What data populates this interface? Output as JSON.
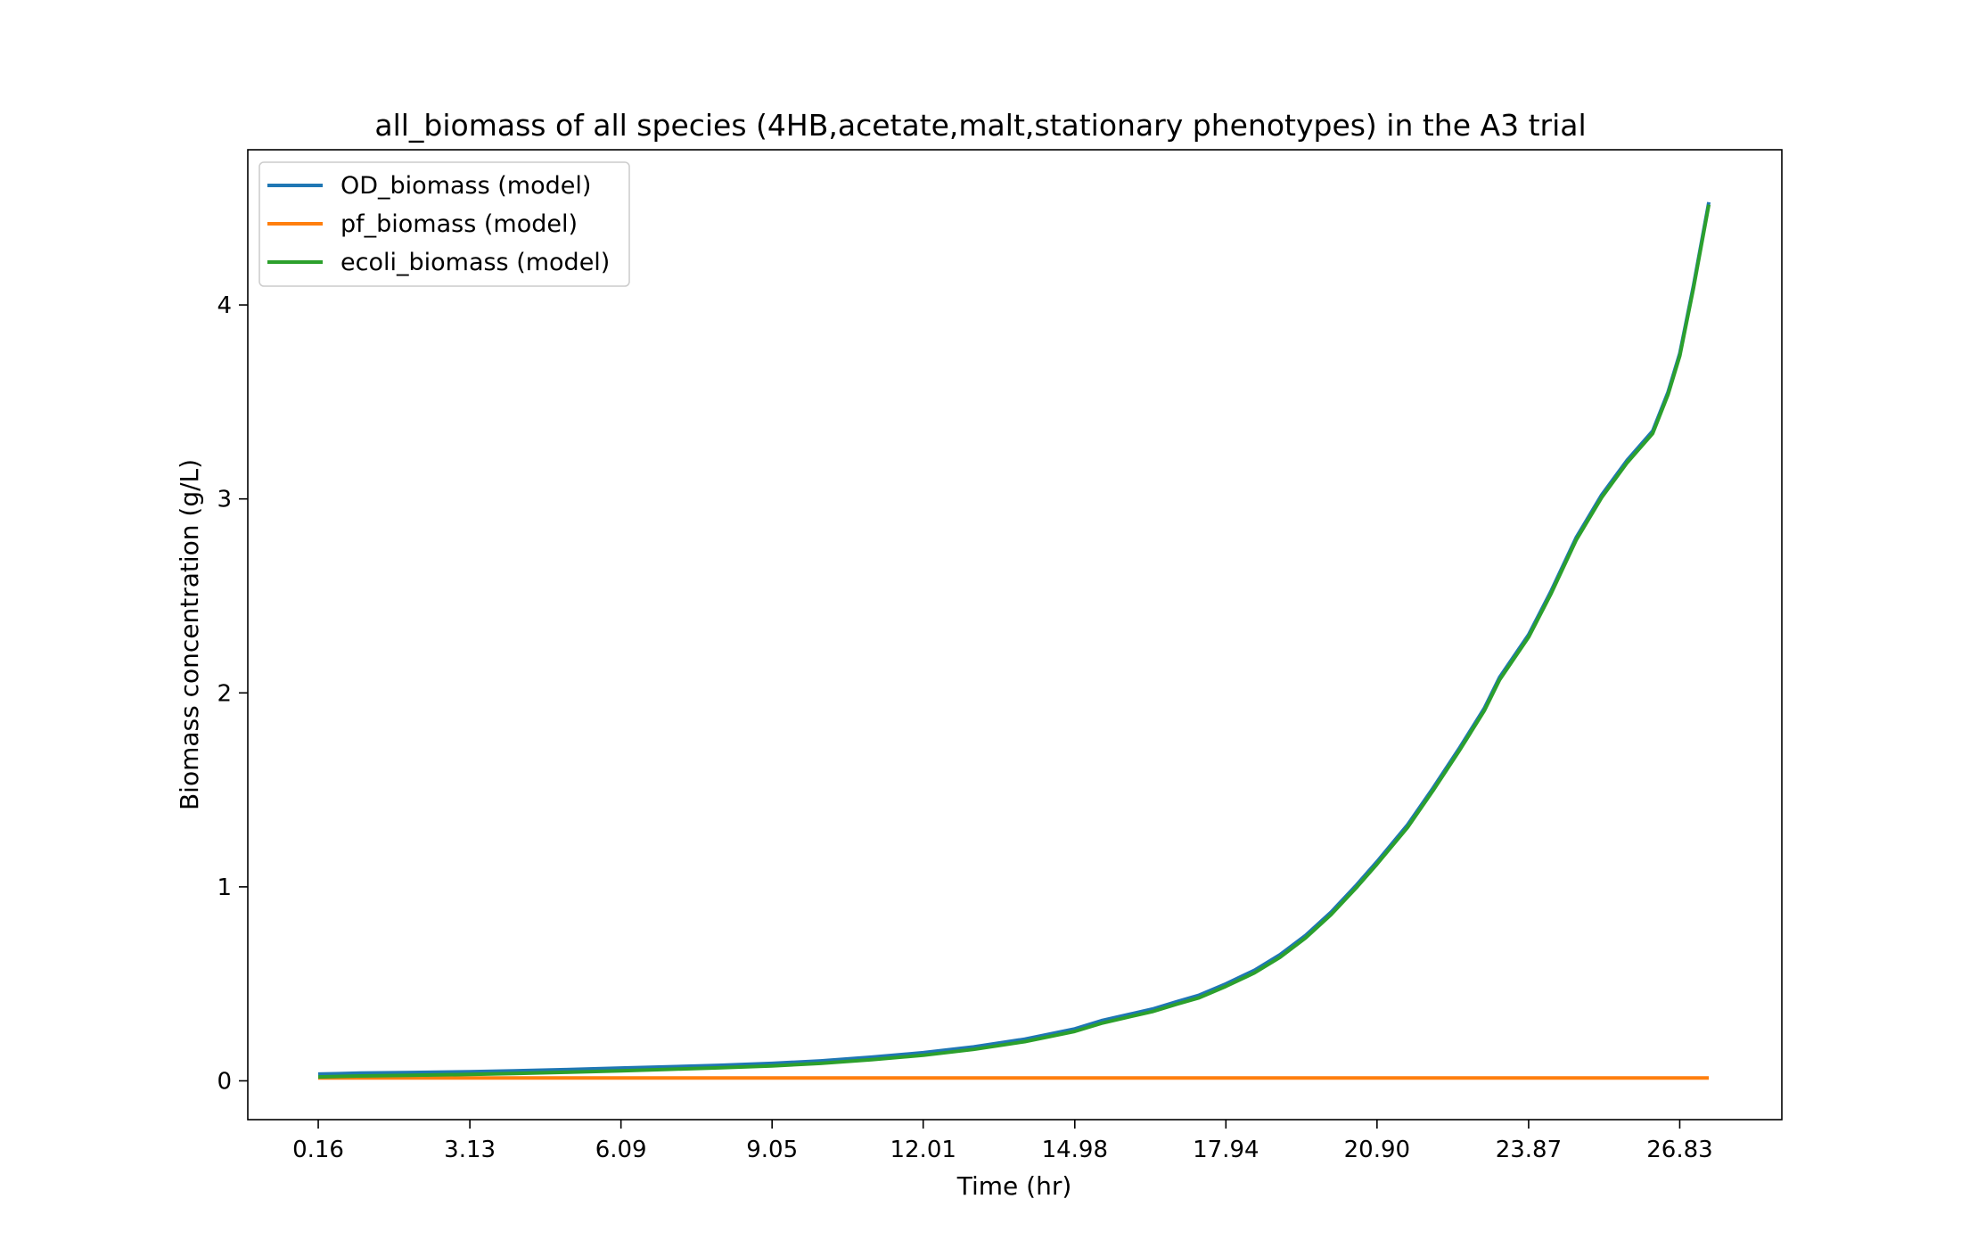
{
  "chart_data": {
    "type": "line",
    "title": "all_biomass of all species (4HB,acetate,malt,stationary phenotypes) in the A3 trial",
    "xlabel": "Time (hr)",
    "ylabel": "Biomass concentration (g/L)",
    "xlim": [
      -1.22,
      28.83
    ],
    "ylim": [
      -0.2,
      4.8
    ],
    "x_ticks": [
      0.16,
      3.13,
      6.09,
      9.05,
      12.01,
      14.98,
      17.94,
      20.9,
      23.87,
      26.83
    ],
    "x_tick_labels": [
      "0.16",
      "3.13",
      "6.09",
      "9.05",
      "12.01",
      "14.98",
      "17.94",
      "20.90",
      "23.87",
      "26.83"
    ],
    "y_ticks": [
      0,
      1,
      2,
      3,
      4
    ],
    "y_tick_labels": [
      "0",
      "1",
      "2",
      "3",
      "4"
    ],
    "grid": false,
    "legend_position": "top-left",
    "series": [
      {
        "name": "OD_biomass (model)",
        "color": "#1f77b4",
        "x": [
          0.16,
          1.0,
          2.0,
          3.13,
          4.0,
          5.0,
          6.09,
          7.0,
          8.0,
          9.05,
          10.0,
          11.0,
          12.01,
          13.0,
          14.0,
          14.98,
          15.5,
          16.0,
          16.5,
          17.0,
          17.4,
          17.94,
          18.5,
          19.0,
          19.5,
          20.0,
          20.5,
          20.9,
          21.5,
          22.0,
          22.5,
          23.0,
          23.3,
          23.87,
          24.3,
          24.8,
          25.3,
          25.8,
          26.3,
          26.6,
          26.83,
          27.1,
          27.4
        ],
        "y": [
          0.035,
          0.04,
          0.043,
          0.047,
          0.052,
          0.058,
          0.066,
          0.072,
          0.08,
          0.09,
          0.103,
          0.122,
          0.145,
          0.175,
          0.215,
          0.268,
          0.31,
          0.34,
          0.37,
          0.41,
          0.44,
          0.5,
          0.57,
          0.65,
          0.75,
          0.87,
          1.01,
          1.13,
          1.32,
          1.51,
          1.71,
          1.92,
          2.08,
          2.3,
          2.52,
          2.8,
          3.02,
          3.2,
          3.35,
          3.55,
          3.75,
          4.1,
          4.53
        ]
      },
      {
        "name": "pf_biomass (model)",
        "color": "#ff7f0e",
        "x": [
          0.16,
          27.4
        ],
        "y": [
          0.015,
          0.015
        ]
      },
      {
        "name": "ecoli_biomass (model)",
        "color": "#2ca02c",
        "x": [
          0.16,
          1.0,
          2.0,
          3.13,
          4.0,
          5.0,
          6.09,
          7.0,
          8.0,
          9.05,
          10.0,
          11.0,
          12.01,
          13.0,
          14.0,
          14.98,
          15.5,
          16.0,
          16.5,
          17.0,
          17.4,
          17.94,
          18.5,
          19.0,
          19.5,
          20.0,
          20.5,
          20.9,
          21.5,
          22.0,
          22.5,
          23.0,
          23.3,
          23.87,
          24.3,
          24.8,
          25.3,
          25.8,
          26.3,
          26.6,
          26.83,
          27.1,
          27.4
        ],
        "y": [
          0.02,
          0.025,
          0.029,
          0.033,
          0.038,
          0.044,
          0.052,
          0.059,
          0.067,
          0.077,
          0.09,
          0.109,
          0.132,
          0.162,
          0.202,
          0.255,
          0.297,
          0.327,
          0.357,
          0.397,
          0.427,
          0.487,
          0.557,
          0.637,
          0.737,
          0.857,
          0.997,
          1.117,
          1.307,
          1.497,
          1.697,
          1.907,
          2.067,
          2.287,
          2.507,
          2.787,
          3.007,
          3.187,
          3.337,
          3.537,
          3.737,
          4.087,
          4.517
        ]
      }
    ]
  }
}
